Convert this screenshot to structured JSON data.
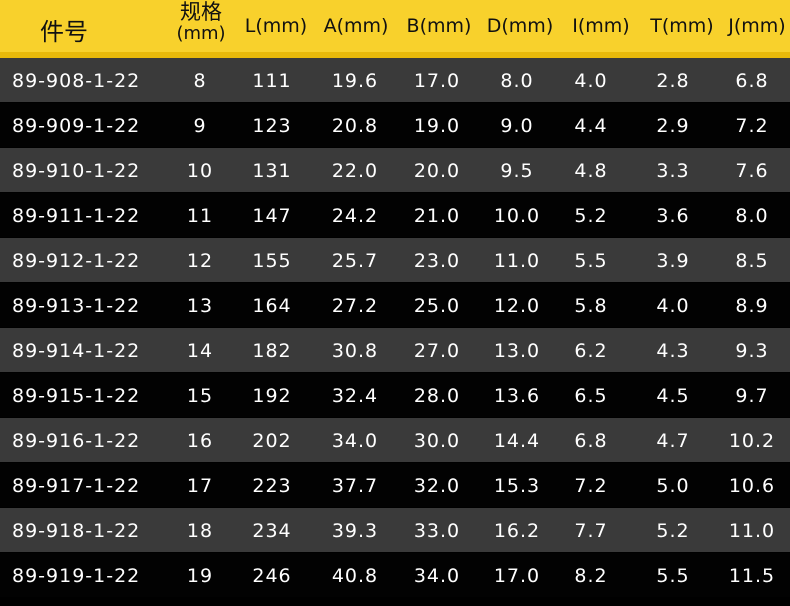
{
  "headers": {
    "part": "件号",
    "spec": "规格",
    "spec_unit": "(mm)",
    "L": "L(mm)",
    "A": "A(mm)",
    "B": "B(mm)",
    "D": "D(mm)",
    "I": "I(mm)",
    "T": "T(mm)",
    "J": "J(mm)"
  },
  "colors": {
    "header": "#f8d12c",
    "row_dark_gray": "#3a3a3a",
    "row_black": "#020202",
    "text": "#ffffff"
  },
  "rows": [
    [
      "89-908-1-22",
      "8",
      "111",
      "19.6",
      "17.0",
      "8.0",
      "4.0",
      "2.8",
      "6.8"
    ],
    [
      "89-909-1-22",
      "9",
      "123",
      "20.8",
      "19.0",
      "9.0",
      "4.4",
      "2.9",
      "7.2"
    ],
    [
      "89-910-1-22",
      "10",
      "131",
      "22.0",
      "20.0",
      "9.5",
      "4.8",
      "3.3",
      "7.6"
    ],
    [
      "89-911-1-22",
      "11",
      "147",
      "24.2",
      "21.0",
      "10.0",
      "5.2",
      "3.6",
      "8.0"
    ],
    [
      "89-912-1-22",
      "12",
      "155",
      "25.7",
      "23.0",
      "11.0",
      "5.5",
      "3.9",
      "8.5"
    ],
    [
      "89-913-1-22",
      "13",
      "164",
      "27.2",
      "25.0",
      "12.0",
      "5.8",
      "4.0",
      "8.9"
    ],
    [
      "89-914-1-22",
      "14",
      "182",
      "30.8",
      "27.0",
      "13.0",
      "6.2",
      "4.3",
      "9.3"
    ],
    [
      "89-915-1-22",
      "15",
      "192",
      "32.4",
      "28.0",
      "13.6",
      "6.5",
      "4.5",
      "9.7"
    ],
    [
      "89-916-1-22",
      "16",
      "202",
      "34.0",
      "30.0",
      "14.4",
      "6.8",
      "4.7",
      "10.2"
    ],
    [
      "89-917-1-22",
      "17",
      "223",
      "37.7",
      "32.0",
      "15.3",
      "7.2",
      "5.0",
      "10.6"
    ],
    [
      "89-918-1-22",
      "18",
      "234",
      "39.3",
      "33.0",
      "16.2",
      "7.7",
      "5.2",
      "11.0"
    ],
    [
      "89-919-1-22",
      "19",
      "246",
      "40.8",
      "34.0",
      "17.0",
      "8.2",
      "5.5",
      "11.5"
    ]
  ]
}
